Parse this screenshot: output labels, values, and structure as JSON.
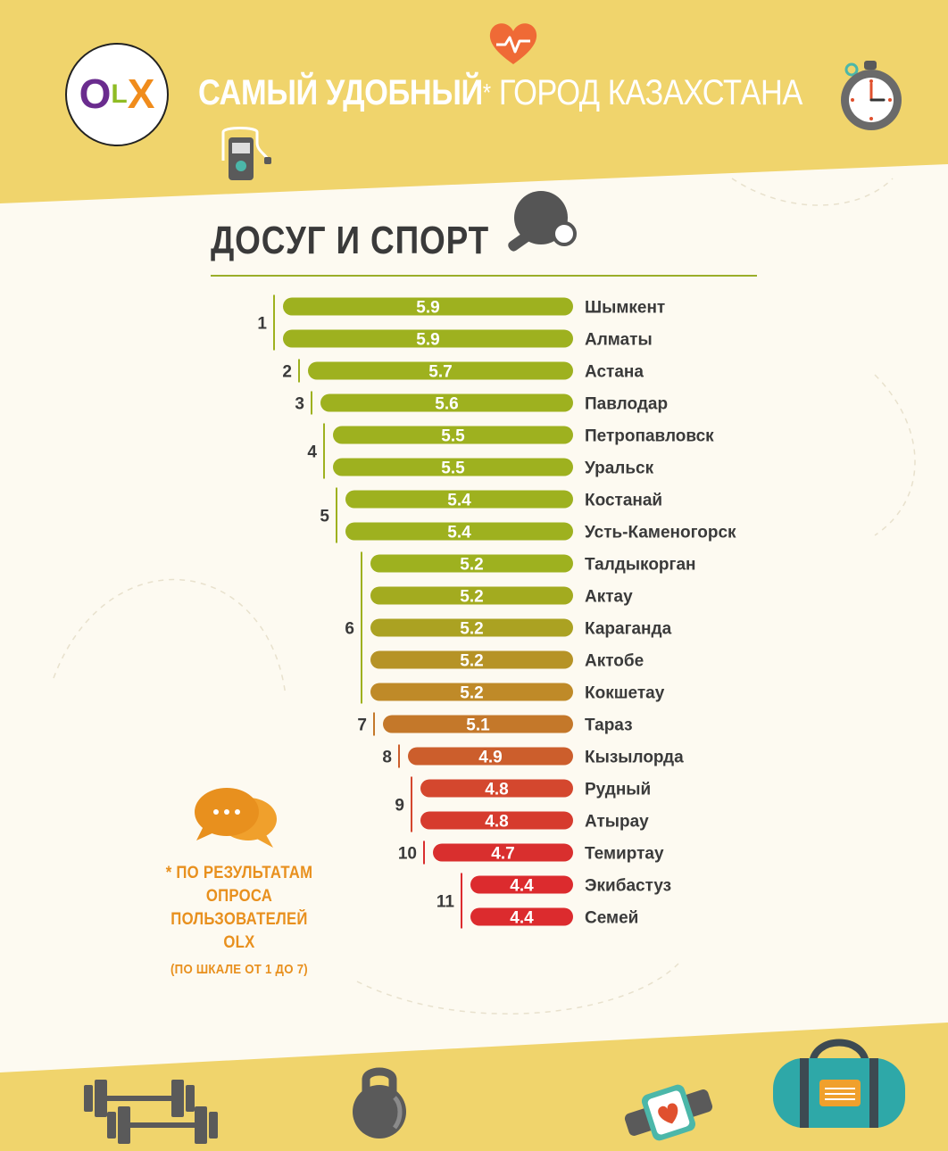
{
  "header": {
    "title_bold": "САМЫЙ УДОБНЫЙ",
    "title_star": "*",
    "title_rest": "ГОРОД КАЗАХСТАНА",
    "logo_text": "OLX"
  },
  "section": {
    "title": "ДОСУГ И СПОРТ"
  },
  "footnote": {
    "line1": "* ПО РЕЗУЛЬТАТАМ",
    "line2": "ОПРОСА",
    "line3": "ПОЛЬЗОВАТЕЛЕЙ OLX",
    "scale": "(ПО ШКАЛЕ ОТ 1 ДО 7)"
  },
  "colors": {
    "header_yellow": "#f0d46c",
    "rule_green": "#9aae2a",
    "text_dark": "#3a3a3a",
    "note_orange": "#e8901e"
  },
  "icons": [
    "heart-pulse-icon",
    "stopwatch-icon",
    "mp3-player-icon",
    "ping-pong-paddle-icon",
    "chat-bubbles-icon",
    "dumbbells-icon",
    "kettlebell-icon",
    "fitness-tracker-icon",
    "sports-bag-icon"
  ],
  "chart_data": {
    "type": "bar",
    "orientation": "horizontal",
    "title": "ДОСУГ И СПОРТ",
    "categories": [
      "Шымкент",
      "Алматы",
      "Астана",
      "Павлодар",
      "Петропавловск",
      "Уральск",
      "Костанай",
      "Усть-Каменогорск",
      "Талдыкорган",
      "Актау",
      "Караганда",
      "Актобе",
      "Кокшетау",
      "Тараз",
      "Кызылорда",
      "Рудный",
      "Атырау",
      "Темиртау",
      "Экибастуз",
      "Семей"
    ],
    "values": [
      5.9,
      5.9,
      5.7,
      5.6,
      5.5,
      5.5,
      5.4,
      5.4,
      5.2,
      5.2,
      5.2,
      5.2,
      5.2,
      5.1,
      4.9,
      4.8,
      4.8,
      4.7,
      4.4,
      4.4
    ],
    "data_labels": [
      "5.9",
      "5.9",
      "5.7",
      "5.6",
      "5.5",
      "5.5",
      "5.4",
      "5.4",
      "5.2",
      "5.2",
      "5.2",
      "5.2",
      "5.2",
      "5.1",
      "4.9",
      "4.8",
      "4.8",
      "4.7",
      "4.4",
      "4.4"
    ],
    "bar_colors": [
      "#9eb11f",
      "#9eb11f",
      "#9eb11f",
      "#9eb11f",
      "#9eb11f",
      "#9eb11f",
      "#9eb11f",
      "#9eb11f",
      "#9eb11f",
      "#a3ab1f",
      "#aba222",
      "#b69326",
      "#bf8a28",
      "#c4782a",
      "#cc5e2c",
      "#d4472e",
      "#d63b2e",
      "#d92f2e",
      "#dc2b2e",
      "#dc2b2e"
    ],
    "ranks": [
      {
        "label": "1",
        "count": 2
      },
      {
        "label": "2",
        "count": 1
      },
      {
        "label": "3",
        "count": 1
      },
      {
        "label": "4",
        "count": 2
      },
      {
        "label": "5",
        "count": 2
      },
      {
        "label": "6",
        "count": 5
      },
      {
        "label": "7",
        "count": 1
      },
      {
        "label": "8",
        "count": 1
      },
      {
        "label": "9",
        "count": 2
      },
      {
        "label": "10",
        "count": 1
      },
      {
        "label": "11",
        "count": 2
      }
    ],
    "scale_min": 1,
    "scale_max": 7,
    "grid": false,
    "legend": "none"
  }
}
